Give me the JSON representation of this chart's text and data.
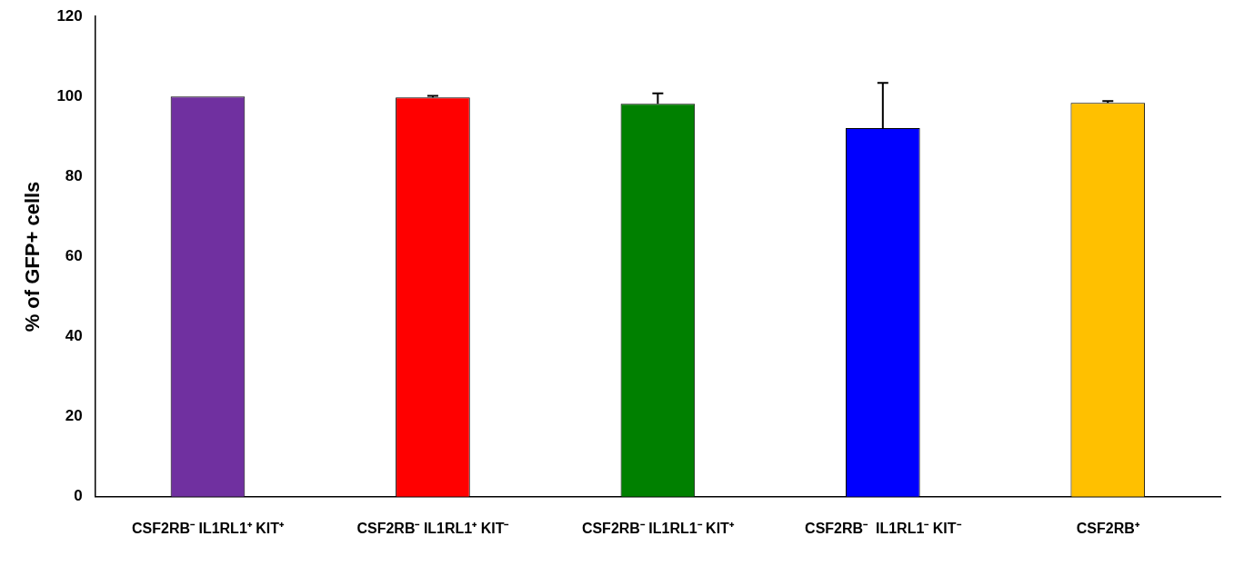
{
  "chart_data": {
    "type": "bar",
    "ylabel": "% of GFP+ cells",
    "categories": [
      "CSF2RB⁻ IL1RL1⁺ KIT⁺",
      "CSF2RB⁻ IL1RL1⁺ KIT⁻",
      "CSF2RB⁻ IL1RL1⁻ KIT⁺",
      "CSF2RB⁻  IL1RL1⁻ KIT⁻",
      "CSF2RB⁺"
    ],
    "values": [
      100,
      99.8,
      98.2,
      92.1,
      98.4
    ],
    "colors": [
      "#7030a0",
      "#ff0000",
      "#008000",
      "#0000ff",
      "#ffc000"
    ],
    "errors": [
      null,
      [
        99.8,
        100.2
      ],
      [
        98.2,
        100.8
      ],
      [
        92.1,
        103.4
      ],
      [
        98.4,
        98.9
      ]
    ],
    "ylim": [
      0,
      120
    ],
    "yticks": [
      0,
      20,
      40,
      60,
      80,
      100,
      120
    ],
    "grid": false,
    "legend": false
  }
}
